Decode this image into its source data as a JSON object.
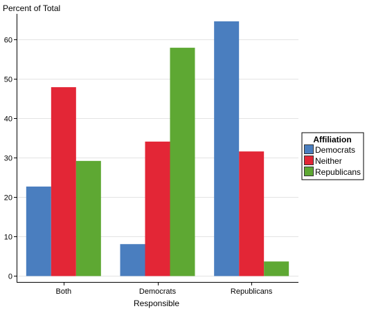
{
  "chart_data": {
    "type": "bar",
    "title": "",
    "ylabel": "Percent of Total",
    "xlabel": "Responsible",
    "categories": [
      "Both",
      "Democrats",
      "Republicans"
    ],
    "series": [
      {
        "name": "Democrats",
        "color": "#4a7ebf",
        "values": [
          22.7,
          8.1,
          64.6
        ]
      },
      {
        "name": "Neither",
        "color": "#e32636",
        "values": [
          47.9,
          34.1,
          31.6
        ]
      },
      {
        "name": "Republicans",
        "color": "#5ea833",
        "values": [
          29.2,
          57.9,
          3.7
        ]
      }
    ],
    "ylim": [
      -1.5,
      66.5
    ],
    "yticks": [
      0,
      10,
      20,
      30,
      40,
      50,
      60
    ],
    "grid": true,
    "legend": {
      "title": "Affiliation",
      "placement": "right"
    }
  }
}
